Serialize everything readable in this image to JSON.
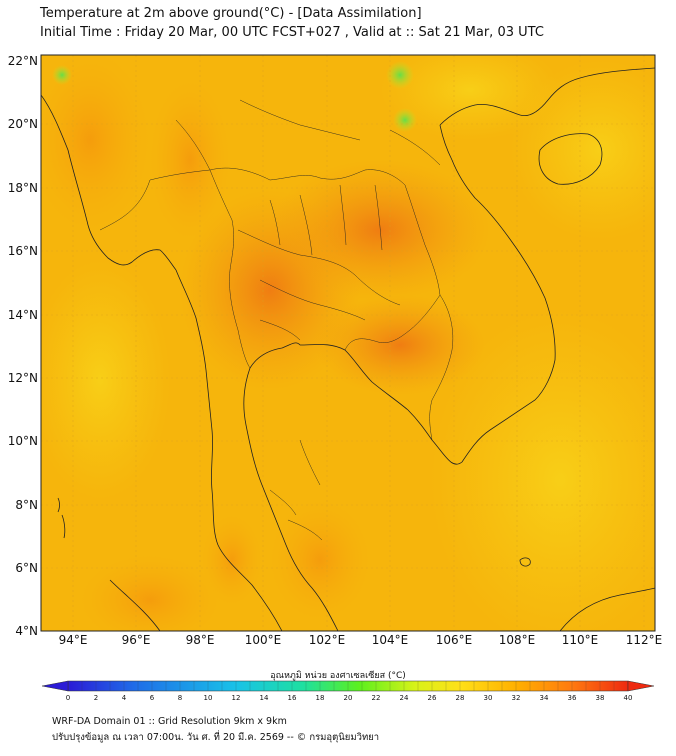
{
  "title_line1": "Temperature at 2m above ground(°C) - [Data Assimilation]",
  "title_line2": "Initial Time : Friday 20 Mar, 00 UTC FCST+027 , Valid at :: Sat 21 Mar, 03 UTC",
  "lat_labels": [
    "22°N",
    "20°N",
    "18°N",
    "16°N",
    "14°N",
    "12°N",
    "10°N",
    "8°N",
    "6°N",
    "4°N"
  ],
  "lon_labels": [
    "94°E",
    "96°E",
    "98°E",
    "100°E",
    "102°E",
    "104°E",
    "106°E",
    "108°E",
    "110°E",
    "112°E"
  ],
  "colorbar": {
    "title": "อุณหภูมิ หน่วย องศาเซลเซียส (°C)",
    "ticks": [
      "0",
      "2",
      "4",
      "6",
      "8",
      "10",
      "12",
      "14",
      "16",
      "18",
      "20",
      "22",
      "24",
      "26",
      "28",
      "30",
      "32",
      "34",
      "36",
      "38",
      "40"
    ],
    "min": 0,
    "max": 40,
    "colors": [
      "#2b1bd6",
      "#1f6de8",
      "#19c2e8",
      "#1ee0a0",
      "#5cf01e",
      "#d8f218",
      "#ffe018",
      "#ffb000",
      "#ff7a10",
      "#ee2a10"
    ]
  },
  "footer_line1": "WRF-DA Domain 01 :: Grid Resolution 9km x 9km",
  "footer_line2": "ปรับปรุงข้อมูล ณ เวลา 07:00น. วัน ศ. ที่ 20 มี.ค. 2569 -- © กรมอุตุนิยมวิทยา"
}
